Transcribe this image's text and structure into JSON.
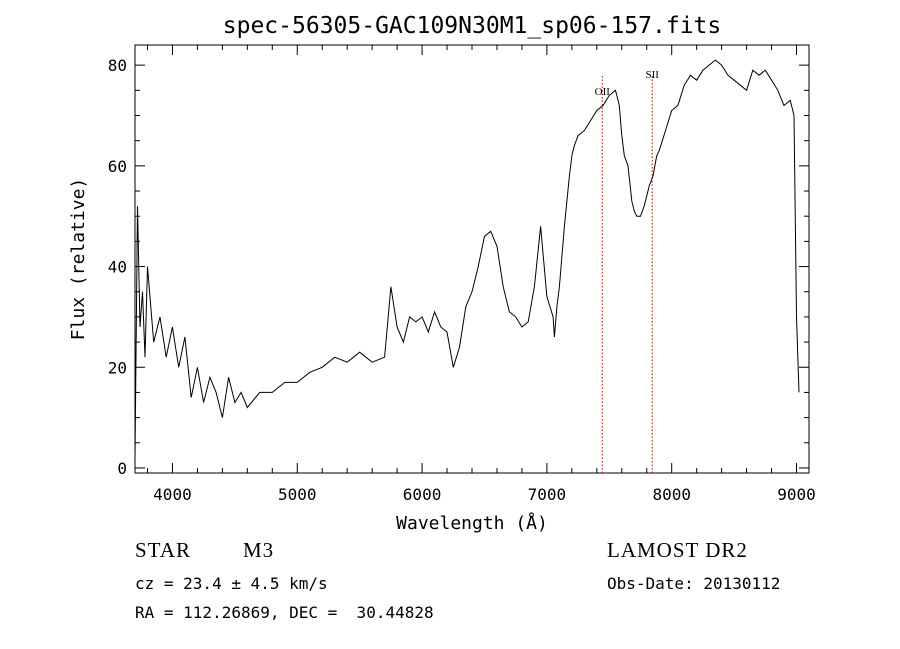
{
  "chart_data": {
    "type": "line",
    "title": "spec-56305-GAC109N30M1_sp06-157.fits",
    "xlabel": "Wavelength (Å)",
    "ylabel": "Flux (relative)",
    "xlim": [
      3700,
      9100
    ],
    "ylim": [
      -1,
      84
    ],
    "x_ticks": [
      4000,
      5000,
      6000,
      7000,
      8000,
      9000
    ],
    "y_ticks": [
      0,
      20,
      40,
      60,
      80
    ],
    "grid": false,
    "line_markers": [
      {
        "label": "OII",
        "x": 7444,
        "color": "#b00000"
      },
      {
        "label": "SII",
        "x": 7844,
        "color": "#b00000"
      }
    ],
    "series": [
      {
        "color": "#000000",
        "x": [
          3700,
          3720,
          3740,
          3760,
          3780,
          3800,
          3850,
          3900,
          3950,
          4000,
          4050,
          4100,
          4150,
          4200,
          4250,
          4300,
          4350,
          4400,
          4450,
          4500,
          4550,
          4600,
          4700,
          4800,
          4900,
          5000,
          5100,
          5200,
          5300,
          5400,
          5500,
          5600,
          5700,
          5750,
          5800,
          5850,
          5900,
          5950,
          6000,
          6050,
          6100,
          6150,
          6200,
          6250,
          6300,
          6350,
          6400,
          6450,
          6500,
          6550,
          6600,
          6650,
          6700,
          6750,
          6800,
          6850,
          6900,
          6950,
          7000,
          7050,
          7060,
          7080,
          7100,
          7120,
          7140,
          7160,
          7180,
          7200,
          7220,
          7250,
          7300,
          7350,
          7400,
          7450,
          7500,
          7550,
          7580,
          7600,
          7620,
          7650,
          7680,
          7700,
          7720,
          7750,
          7780,
          7800,
          7820,
          7850,
          7880,
          7900,
          7950,
          8000,
          8050,
          8100,
          8150,
          8200,
          8250,
          8300,
          8350,
          8400,
          8450,
          8500,
          8550,
          8600,
          8650,
          8700,
          8750,
          8800,
          8850,
          8900,
          8950,
          8980,
          9000,
          9020
        ],
        "y": [
          2,
          52,
          28,
          35,
          22,
          40,
          25,
          30,
          22,
          28,
          20,
          26,
          14,
          20,
          13,
          18,
          15,
          10,
          18,
          13,
          15,
          12,
          15,
          15,
          17,
          17,
          19,
          20,
          22,
          21,
          23,
          21,
          22,
          36,
          28,
          25,
          30,
          29,
          30,
          27,
          31,
          28,
          27,
          20,
          24,
          32,
          35,
          40,
          46,
          47,
          44,
          36,
          31,
          30,
          28,
          29,
          36,
          48,
          34,
          30,
          26,
          32,
          36,
          42,
          48,
          53,
          58,
          62,
          64,
          66,
          67,
          69,
          71,
          72,
          74,
          75,
          72,
          66,
          62,
          60,
          53,
          51,
          50,
          50,
          52,
          54,
          56,
          58,
          62,
          63,
          67,
          71,
          72,
          76,
          78,
          77,
          79,
          80,
          81,
          80,
          78,
          77,
          76,
          75,
          79,
          78,
          79,
          77,
          75,
          72,
          73,
          70,
          30,
          15
        ]
      }
    ]
  },
  "footer": {
    "object_class": "STAR",
    "subclass": "M3",
    "velocity": "cz = 23.4 ± 4.5 km/s",
    "coordinates": "RA = 112.26869, DEC =  30.44828",
    "survey": "LAMOST DR2",
    "obs_date": "Obs-Date: 20130112"
  }
}
